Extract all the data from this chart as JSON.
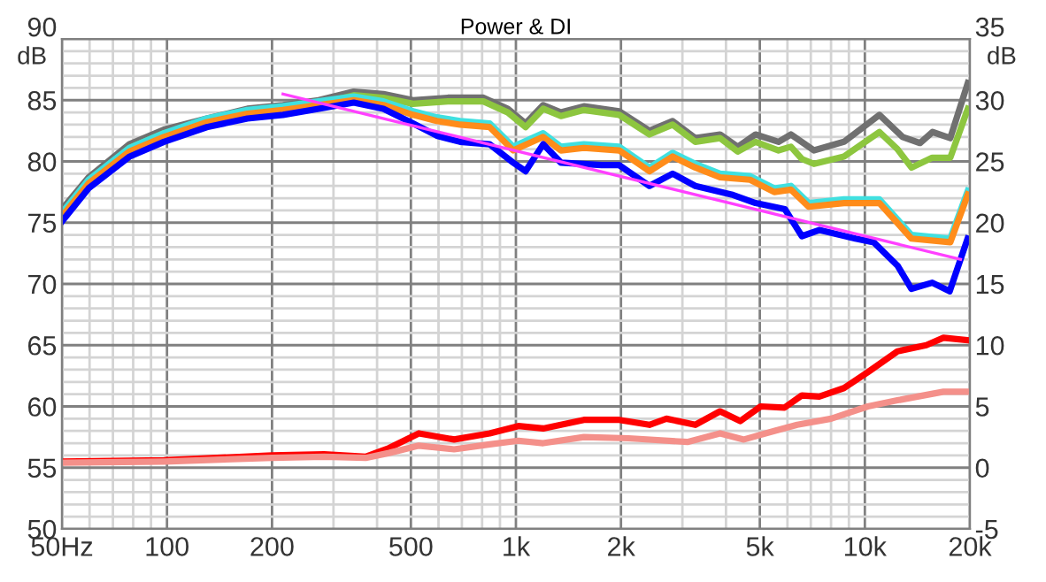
{
  "chart_data": {
    "type": "line",
    "title": "Power & DI",
    "ylabel": "dB",
    "y2label": "dB",
    "xlim": [
      50,
      20000
    ],
    "ylim": [
      50,
      90
    ],
    "y2lim": [
      -5,
      35
    ],
    "log": "x",
    "grid": true,
    "marker": "none",
    "line_style": "solid",
    "xticks": [
      {
        "value": 50,
        "label": "50Hz"
      },
      {
        "value": 60,
        "label": null
      },
      {
        "value": 70,
        "label": null
      },
      {
        "value": 80,
        "label": null
      },
      {
        "value": 90,
        "label": null
      },
      100,
      200,
      {
        "value": 300,
        "label": null
      },
      {
        "value": 400,
        "label": null
      },
      500,
      {
        "value": 600,
        "label": null
      },
      {
        "value": 700,
        "label": null
      },
      {
        "value": 800,
        "label": null
      },
      {
        "value": 900,
        "label": null
      },
      {
        "value": 1000,
        "label": "1k"
      },
      {
        "value": 2000,
        "label": "2k"
      },
      {
        "value": 3000,
        "label": null
      },
      {
        "value": 4000,
        "label": null
      },
      {
        "value": 5000,
        "label": "5k"
      },
      {
        "value": 6000,
        "label": null
      },
      {
        "value": 7000,
        "label": null
      },
      {
        "value": 8000,
        "label": null
      },
      {
        "value": 9000,
        "label": null
      },
      {
        "value": 10000,
        "label": "10k"
      },
      {
        "value": 20000,
        "label": "20k"
      }
    ],
    "yticks": [
      50,
      {
        "value": 51,
        "label": null
      },
      {
        "value": 52,
        "label": null
      },
      {
        "value": 53,
        "label": null
      },
      {
        "value": 54,
        "label": null
      },
      55,
      {
        "value": 56,
        "label": null
      },
      {
        "value": 57,
        "label": null
      },
      {
        "value": 58,
        "label": null
      },
      {
        "value": 59,
        "label": null
      },
      60,
      {
        "value": 61,
        "label": null
      },
      {
        "value": 62,
        "label": null
      },
      {
        "value": 63,
        "label": null
      },
      {
        "value": 64,
        "label": null
      },
      65,
      {
        "value": 66,
        "label": null
      },
      {
        "value": 67,
        "label": null
      },
      {
        "value": 68,
        "label": null
      },
      {
        "value": 69,
        "label": null
      },
      70,
      {
        "value": 71,
        "label": null
      },
      {
        "value": 72,
        "label": null
      },
      {
        "value": 73,
        "label": null
      },
      {
        "value": 74,
        "label": null
      },
      75,
      {
        "value": 76,
        "label": null
      },
      {
        "value": 77,
        "label": null
      },
      {
        "value": 78,
        "label": null
      },
      {
        "value": 79,
        "label": null
      },
      80,
      {
        "value": 81,
        "label": null
      },
      {
        "value": 82,
        "label": null
      },
      {
        "value": 83,
        "label": null
      },
      {
        "value": 84,
        "label": null
      },
      85,
      {
        "value": 86,
        "label": null
      },
      {
        "value": 87,
        "label": null
      },
      {
        "value": 88,
        "label": null
      },
      {
        "value": 89,
        "label": null
      },
      90
    ],
    "y2ticks": [
      -5,
      0,
      5,
      10,
      15,
      20,
      25,
      30,
      35
    ],
    "series": [
      {
        "color": "#707070",
        "x": [
          50,
          59.6,
          78,
          98,
          130,
          170,
          215,
          272,
          343,
          417,
          507,
          638,
          807,
          948,
          1066,
          1197,
          1346,
          1566,
          1977,
          2413,
          2812,
          3267,
          3846,
          4323,
          4861,
          5658,
          6138,
          7146,
          8712,
          11010,
          12830,
          14390,
          15630,
          17570,
          19730
        ],
        "values": [
          76.1,
          78.7,
          81.4,
          82.6,
          83.5,
          84.3,
          84.6,
          85.0,
          85.7,
          85.5,
          85.0,
          85.2,
          85.2,
          84.3,
          83.1,
          84.6,
          84.0,
          84.5,
          84.1,
          82.5,
          83.3,
          81.9,
          82.2,
          81.2,
          82.2,
          81.6,
          82.2,
          80.9,
          81.6,
          83.8,
          82.0,
          81.5,
          82.4,
          81.9,
          86.4
        ]
      },
      {
        "color": "#8dc63f",
        "x": [
          50,
          59.6,
          78,
          98,
          130,
          170,
          215,
          272,
          343,
          417,
          507,
          638,
          807,
          948,
          1066,
          1197,
          1346,
          1566,
          1977,
          2413,
          2812,
          3267,
          3846,
          4323,
          4861,
          5658,
          6138,
          6600,
          7146,
          8712,
          11010,
          12400,
          13600,
          15600,
          17570,
          19730
        ],
        "values": [
          75.8,
          78.4,
          81.1,
          82.3,
          83.2,
          84.0,
          84.3,
          84.7,
          85.4,
          85.2,
          84.7,
          84.9,
          84.9,
          84.0,
          82.8,
          84.3,
          83.7,
          84.2,
          83.8,
          82.2,
          83.0,
          81.6,
          81.9,
          80.8,
          81.6,
          80.9,
          81.2,
          80.2,
          79.8,
          80.4,
          82.4,
          81.0,
          79.5,
          80.3,
          80.3,
          84.3
        ]
      },
      {
        "color": "#40e0e0",
        "x": [
          50,
          59.6,
          78,
          98,
          130,
          170,
          215,
          272,
          343,
          417,
          507,
          593,
          692,
          841,
          982,
          1197,
          1346,
          1566,
          1977,
          2413,
          2812,
          3267,
          3846,
          4690,
          5500,
          6138,
          6900,
          8712,
          11010,
          13600,
          17570,
          19730
        ],
        "values": [
          75.8,
          78.5,
          81.1,
          82.3,
          83.5,
          84.2,
          84.5,
          84.9,
          85.3,
          84.9,
          84.1,
          83.6,
          83.3,
          83.1,
          81.2,
          82.3,
          81.2,
          81.4,
          81.2,
          79.5,
          80.7,
          79.8,
          79.0,
          78.8,
          77.8,
          78.0,
          76.6,
          76.9,
          76.9,
          74.0,
          73.7,
          77.6
        ]
      },
      {
        "color": "#ff8c1a",
        "x": [
          50,
          59.6,
          78,
          98,
          130,
          170,
          215,
          272,
          343,
          417,
          507,
          593,
          692,
          841,
          982,
          1197,
          1346,
          1566,
          1977,
          2413,
          2812,
          3267,
          3846,
          4690,
          5500,
          6138,
          6900,
          8712,
          11010,
          13600,
          17570,
          19730
        ],
        "values": [
          75.5,
          78.2,
          80.8,
          82.0,
          83.2,
          83.9,
          84.2,
          84.6,
          85.0,
          84.6,
          83.8,
          83.3,
          83.0,
          82.8,
          80.9,
          82.0,
          80.9,
          81.1,
          80.9,
          79.2,
          80.4,
          79.5,
          78.7,
          78.5,
          77.5,
          77.7,
          76.3,
          76.6,
          76.6,
          73.7,
          73.4,
          77.3
        ]
      },
      {
        "color": "#0000ff",
        "x": [
          50,
          59.6,
          78.2,
          98,
          130,
          170,
          215,
          272,
          343,
          417,
          507,
          593,
          692,
          841,
          982,
          1066,
          1197,
          1346,
          1760,
          1977,
          2413,
          2812,
          3267,
          4150,
          4861,
          5900,
          6600,
          7400,
          9400,
          10600,
          12400,
          13600,
          15600,
          17500,
          19700
        ],
        "values": [
          75.1,
          77.8,
          80.4,
          81.6,
          82.8,
          83.5,
          83.8,
          84.3,
          84.8,
          84.3,
          83.1,
          82.1,
          81.6,
          81.4,
          79.9,
          79.2,
          81.4,
          79.9,
          79.7,
          79.7,
          78.0,
          79.0,
          78.0,
          77.3,
          76.6,
          76.1,
          73.9,
          74.4,
          73.7,
          73.4,
          71.5,
          69.6,
          70.1,
          69.4,
          73.7
        ]
      },
      {
        "color": "#ff40ff",
        "x": [
          215,
          18800
        ],
        "values": [
          85.5,
          72.0
        ]
      },
      {
        "color": "#ff0000",
        "axis": "y2",
        "x": [
          50,
          98,
          200,
          282,
          371,
          433,
          527,
          665,
          841,
          1016,
          1197,
          1566,
          1977,
          2413,
          2700,
          3267,
          3846,
          4393,
          5029,
          5883,
          6600,
          7400,
          8712,
          10200,
          12400,
          15000,
          16800,
          19900
        ],
        "values": [
          0.5,
          0.6,
          1.0,
          1.1,
          0.9,
          1.6,
          2.8,
          2.3,
          2.8,
          3.4,
          3.2,
          3.9,
          3.9,
          3.5,
          4.0,
          3.5,
          4.6,
          3.8,
          5.0,
          4.9,
          5.9,
          5.8,
          6.5,
          7.8,
          9.5,
          10.0,
          10.6,
          10.4
        ]
      },
      {
        "color": "#f4908a",
        "axis": "y2",
        "x": [
          50,
          98,
          200,
          282,
          371,
          433,
          527,
          665,
          841,
          1016,
          1197,
          1566,
          2100,
          3100,
          3846,
          4500,
          5500,
          6400,
          8000,
          10200,
          12400,
          16800,
          19900
        ],
        "values": [
          0.4,
          0.5,
          0.8,
          0.9,
          0.8,
          1.2,
          1.8,
          1.5,
          1.9,
          2.2,
          2.0,
          2.5,
          2.4,
          2.1,
          2.8,
          2.3,
          3.0,
          3.5,
          4.0,
          5.0,
          5.5,
          6.2,
          6.2
        ]
      }
    ]
  }
}
